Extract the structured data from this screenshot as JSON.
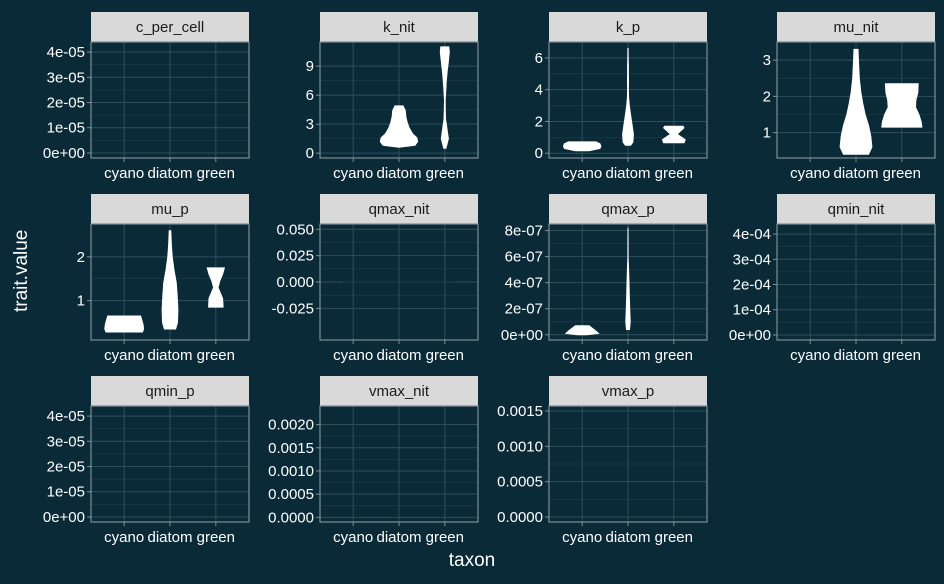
{
  "chart_data": {
    "type": "violin",
    "xlabel": "taxon",
    "ylabel": "trait.value",
    "categories": [
      "cyano",
      "diatom",
      "green"
    ],
    "style": {
      "background": "#0a2a38",
      "strip_fill": "#d9d9d9",
      "violin_fill": "#ffffff",
      "text_color": "#ffffff",
      "strip_text_color": "#1a1a1a",
      "grid_color": "#2e4f5c",
      "border_color": "#7d8f96"
    },
    "panels": [
      {
        "trait": "c_per_cell",
        "ylim": [
          -2e-06,
          4.4e-05
        ],
        "yticks": [
          0,
          1e-05,
          2e-05,
          3e-05,
          4e-05
        ],
        "yticklabels": [
          "0e+00",
          "1e-05",
          "2e-05",
          "3e-05",
          "4e-05"
        ],
        "violins": []
      },
      {
        "trait": "k_nit",
        "ylim": [
          -0.5,
          11.5
        ],
        "yticks": [
          0,
          3,
          6,
          9
        ],
        "yticklabels": [
          "0",
          "3",
          "6",
          "9"
        ],
        "violins": [
          {
            "taxon": "diatom",
            "profile": [
              [
                0.6,
                0.0
              ],
              [
                0.8,
                0.7
              ],
              [
                1.2,
                0.82
              ],
              [
                1.6,
                0.78
              ],
              [
                2.0,
                0.6
              ],
              [
                2.6,
                0.45
              ],
              [
                3.2,
                0.36
              ],
              [
                3.8,
                0.3
              ],
              [
                4.4,
                0.28
              ],
              [
                4.9,
                0.18
              ]
            ]
          },
          {
            "taxon": "green",
            "profile": [
              [
                0.5,
                0.05
              ],
              [
                1.5,
                0.16
              ],
              [
                2.5,
                0.1
              ],
              [
                3.5,
                0.04
              ],
              [
                4.5,
                0.025
              ],
              [
                5.5,
                0.02
              ],
              [
                6.5,
                0.045
              ],
              [
                7.5,
                0.07
              ],
              [
                8.5,
                0.11
              ],
              [
                9.5,
                0.16
              ],
              [
                10.5,
                0.2
              ],
              [
                11.0,
                0.18
              ]
            ]
          }
        ]
      },
      {
        "trait": "k_p",
        "ylim": [
          -0.3,
          7.0
        ],
        "yticks": [
          0,
          2,
          4,
          6
        ],
        "yticklabels": [
          "0",
          "2",
          "4",
          "6"
        ],
        "violins": [
          {
            "taxon": "cyano",
            "profile": [
              [
                0.15,
                0.3
              ],
              [
                0.3,
                0.78
              ],
              [
                0.45,
                0.82
              ],
              [
                0.6,
                0.78
              ],
              [
                0.72,
                0.6
              ]
            ]
          },
          {
            "taxon": "diatom",
            "profile": [
              [
                0.5,
                0.12
              ],
              [
                0.7,
                0.22
              ],
              [
                1.2,
                0.24
              ],
              [
                1.8,
                0.18
              ],
              [
                2.4,
                0.12
              ],
              [
                3.0,
                0.06
              ],
              [
                3.5,
                0.03
              ],
              [
                4.0,
                0.02
              ],
              [
                4.5,
                0.025
              ],
              [
                5.0,
                0.02
              ],
              [
                5.5,
                0.02
              ],
              [
                6.0,
                0.015
              ],
              [
                6.6,
                0.01
              ]
            ]
          },
          {
            "taxon": "green",
            "profile": [
              [
                0.65,
                0.45
              ],
              [
                0.85,
                0.5
              ],
              [
                1.05,
                0.3
              ],
              [
                1.2,
                0.15
              ],
              [
                1.4,
                0.3
              ],
              [
                1.6,
                0.45
              ],
              [
                1.7,
                0.4
              ]
            ]
          }
        ]
      },
      {
        "trait": "mu_nit",
        "ylim": [
          0.3,
          3.5
        ],
        "yticks": [
          1,
          2,
          3
        ],
        "yticklabels": [
          "1",
          "2",
          "3"
        ],
        "violins": [
          {
            "taxon": "diatom",
            "profile": [
              [
                0.4,
                0.55
              ],
              [
                0.6,
                0.7
              ],
              [
                0.9,
                0.65
              ],
              [
                1.2,
                0.55
              ],
              [
                1.5,
                0.4
              ],
              [
                1.8,
                0.3
              ],
              [
                2.1,
                0.22
              ],
              [
                2.5,
                0.15
              ],
              [
                2.9,
                0.12
              ],
              [
                3.3,
                0.09
              ]
            ]
          },
          {
            "taxon": "green",
            "profile": [
              [
                1.15,
                0.88
              ],
              [
                1.3,
                0.85
              ],
              [
                1.5,
                0.75
              ],
              [
                1.7,
                0.6
              ],
              [
                1.9,
                0.62
              ],
              [
                2.1,
                0.7
              ],
              [
                2.35,
                0.72
              ]
            ]
          }
        ]
      },
      {
        "trait": "mu_p",
        "ylim": [
          0.1,
          2.75
        ],
        "yticks": [
          1,
          2
        ],
        "yticklabels": [
          "1",
          "2"
        ],
        "violins": [
          {
            "taxon": "cyano",
            "profile": [
              [
                0.28,
                0.8
              ],
              [
                0.35,
                0.85
              ],
              [
                0.45,
                0.83
              ],
              [
                0.55,
                0.78
              ],
              [
                0.65,
                0.72
              ]
            ]
          },
          {
            "taxon": "diatom",
            "profile": [
              [
                0.35,
                0.25
              ],
              [
                0.5,
                0.33
              ],
              [
                0.8,
                0.35
              ],
              [
                1.1,
                0.32
              ],
              [
                1.4,
                0.28
              ],
              [
                1.7,
                0.18
              ],
              [
                2.0,
                0.1
              ],
              [
                2.3,
                0.06
              ],
              [
                2.6,
                0.04
              ]
            ]
          },
          {
            "taxon": "green",
            "profile": [
              [
                0.85,
                0.32
              ],
              [
                1.05,
                0.3
              ],
              [
                1.2,
                0.18
              ],
              [
                1.3,
                0.1
              ],
              [
                1.45,
                0.18
              ],
              [
                1.6,
                0.3
              ],
              [
                1.75,
                0.38
              ]
            ]
          }
        ]
      },
      {
        "trait": "qmax_nit",
        "ylim": [
          -0.055,
          0.055
        ],
        "yticks": [
          -0.025,
          0,
          0.025,
          0.05
        ],
        "yticklabels": [
          "-0.025",
          "0.000",
          "0.025",
          "0.050"
        ],
        "violins": [],
        "hlines": [
          0
        ]
      },
      {
        "trait": "qmax_p",
        "ylim": [
          -4e-08,
          8.5e-07
        ],
        "yticks": [
          0,
          2e-07,
          4e-07,
          6e-07,
          8e-07
        ],
        "yticklabels": [
          "0e+00",
          "2e-07",
          "4e-07",
          "6e-07",
          "8e-07"
        ],
        "violins": [
          {
            "taxon": "cyano",
            "profile": [
              [
                0.0,
                0.2
              ],
              [
                1e-08,
                0.72
              ],
              [
                3e-08,
                0.6
              ],
              [
                5e-08,
                0.45
              ],
              [
                7e-08,
                0.3
              ]
            ]
          },
          {
            "taxon": "diatom",
            "profile": [
              [
                4e-08,
                0.07
              ],
              [
                1e-07,
                0.1
              ],
              [
                2e-07,
                0.08
              ],
              [
                3e-07,
                0.06
              ],
              [
                4e-07,
                0.05
              ],
              [
                5e-07,
                0.03
              ],
              [
                6e-07,
                0.01
              ],
              [
                7e-07,
                0.008
              ],
              [
                8.2e-07,
                0.006
              ]
            ]
          }
        ]
      },
      {
        "trait": "qmin_nit",
        "ylim": [
          -2e-05,
          0.00044
        ],
        "yticks": [
          0,
          0.0001,
          0.0002,
          0.0003,
          0.0004
        ],
        "yticklabels": [
          "0e+00",
          "1e-04",
          "2e-04",
          "3e-04",
          "4e-04"
        ],
        "violins": []
      },
      {
        "trait": "qmin_p",
        "ylim": [
          -2e-06,
          4.4e-05
        ],
        "yticks": [
          0,
          1e-05,
          2e-05,
          3e-05,
          4e-05
        ],
        "yticklabels": [
          "0e+00",
          "1e-05",
          "2e-05",
          "3e-05",
          "4e-05"
        ],
        "violins": []
      },
      {
        "trait": "vmax_nit",
        "ylim": [
          -0.0001,
          0.0024
        ],
        "yticks": [
          0,
          0.0005,
          0.001,
          0.0015,
          0.002
        ],
        "yticklabels": [
          "0.0000",
          "0.0005",
          "0.0010",
          "0.0015",
          "0.0020"
        ],
        "violins": []
      },
      {
        "trait": "vmax_p",
        "ylim": [
          -7e-05,
          0.00157
        ],
        "yticks": [
          0,
          0.0005,
          0.001,
          0.0015
        ],
        "yticklabels": [
          "0.0000",
          "0.0005",
          "0.0010",
          "0.0015"
        ],
        "violins": []
      }
    ]
  }
}
